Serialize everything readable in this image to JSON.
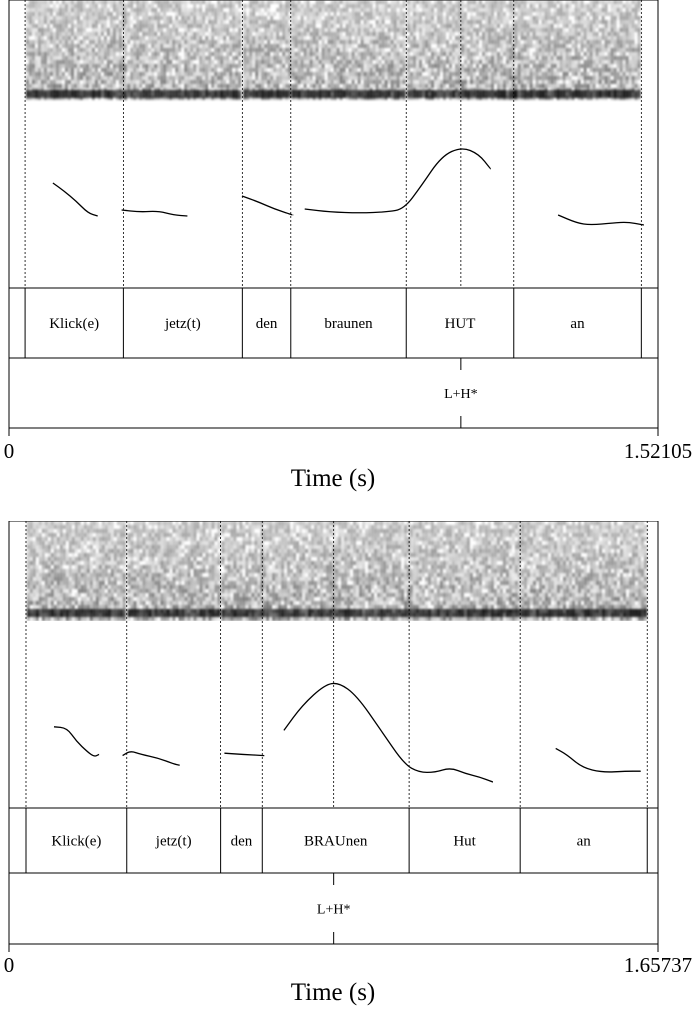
{
  "panels": [
    {
      "id": "top",
      "time_axis": {
        "start": "0",
        "end": "1.52105",
        "label": "Time (s)"
      },
      "words": [
        {
          "label": "Klick(e)",
          "start": 0.0377,
          "end": 0.2681
        },
        {
          "label": "jetz(t)",
          "start": 0.2681,
          "end": 0.5469
        },
        {
          "label": "den",
          "start": 0.5469,
          "end": 0.6604
        },
        {
          "label": "braunen",
          "start": 0.6604,
          "end": 0.931
        },
        {
          "label": "HUT",
          "start": 0.931,
          "end": 1.183
        },
        {
          "label": "an",
          "start": 1.183,
          "end": 1.482
        }
      ],
      "tones": [
        {
          "label": "L+H*",
          "time": 1.059
        }
      ],
      "pitch_segments": [
        [
          [
            0.103,
            0.47
          ],
          [
            0.129,
            0.39
          ],
          [
            0.157,
            0.29
          ],
          [
            0.185,
            0.17
          ],
          [
            0.208,
            0.14
          ]
        ],
        [
          [
            0.264,
            0.2
          ],
          [
            0.306,
            0.18
          ],
          [
            0.35,
            0.19
          ],
          [
            0.386,
            0.15
          ],
          [
            0.418,
            0.14
          ]
        ],
        [
          [
            0.546,
            0.34
          ],
          [
            0.585,
            0.28
          ],
          [
            0.622,
            0.21
          ],
          [
            0.665,
            0.15
          ]
        ],
        [
          [
            0.693,
            0.21
          ],
          [
            0.752,
            0.18
          ],
          [
            0.822,
            0.17
          ],
          [
            0.885,
            0.18
          ],
          [
            0.926,
            0.21
          ],
          [
            0.966,
            0.44
          ],
          [
            1.014,
            0.74
          ],
          [
            1.061,
            0.83
          ],
          [
            1.101,
            0.76
          ],
          [
            1.129,
            0.61
          ]
        ],
        [
          [
            1.287,
            0.15
          ],
          [
            1.331,
            0.07
          ],
          [
            1.363,
            0.05
          ],
          [
            1.416,
            0.07
          ],
          [
            1.449,
            0.08
          ],
          [
            1.488,
            0.05
          ]
        ]
      ]
    },
    {
      "id": "bottom",
      "time_axis": {
        "start": "0",
        "end": "1.65737",
        "label": "Time (s)"
      },
      "words": [
        {
          "label": "Klick(e)",
          "start": 0.0434,
          "end": 0.3007
        },
        {
          "label": "jetz(t)",
          "start": 0.3007,
          "end": 0.5404
        },
        {
          "label": "den",
          "start": 0.5404,
          "end": 0.6468
        },
        {
          "label": "BRAUnen",
          "start": 0.6468,
          "end": 1.0218
        },
        {
          "label": "Hut",
          "start": 1.0218,
          "end": 1.3054
        },
        {
          "label": "an",
          "start": 1.3054,
          "end": 1.6299
        }
      ],
      "tones": [
        {
          "label": "L+H*",
          "time": 0.8291
        }
      ],
      "pitch_segments": [
        [
          [
            0.115,
            0.36
          ],
          [
            0.148,
            0.35
          ],
          [
            0.172,
            0.24
          ],
          [
            0.201,
            0.15
          ],
          [
            0.218,
            0.11
          ],
          [
            0.23,
            0.13
          ]
        ],
        [
          [
            0.29,
            0.12
          ],
          [
            0.31,
            0.16
          ],
          [
            0.337,
            0.13
          ],
          [
            0.381,
            0.1
          ],
          [
            0.421,
            0.05
          ],
          [
            0.436,
            0.04
          ]
        ],
        [
          [
            0.55,
            0.14
          ],
          [
            0.597,
            0.13
          ],
          [
            0.652,
            0.12
          ]
        ],
        [
          [
            0.702,
            0.33
          ],
          [
            0.749,
            0.54
          ],
          [
            0.806,
            0.71
          ],
          [
            0.842,
            0.73
          ],
          [
            0.888,
            0.62
          ],
          [
            0.95,
            0.33
          ],
          [
            1.009,
            0.05
          ],
          [
            1.047,
            -0.02
          ],
          [
            1.088,
            -0.02
          ],
          [
            1.127,
            0.02
          ],
          [
            1.166,
            -0.03
          ],
          [
            1.203,
            -0.06
          ],
          [
            1.236,
            -0.1
          ]
        ],
        [
          [
            1.396,
            0.18
          ],
          [
            1.424,
            0.13
          ],
          [
            1.464,
            0.02
          ],
          [
            1.515,
            -0.02
          ],
          [
            1.576,
            -0.01
          ],
          [
            1.612,
            -0.01
          ]
        ]
      ]
    }
  ]
}
